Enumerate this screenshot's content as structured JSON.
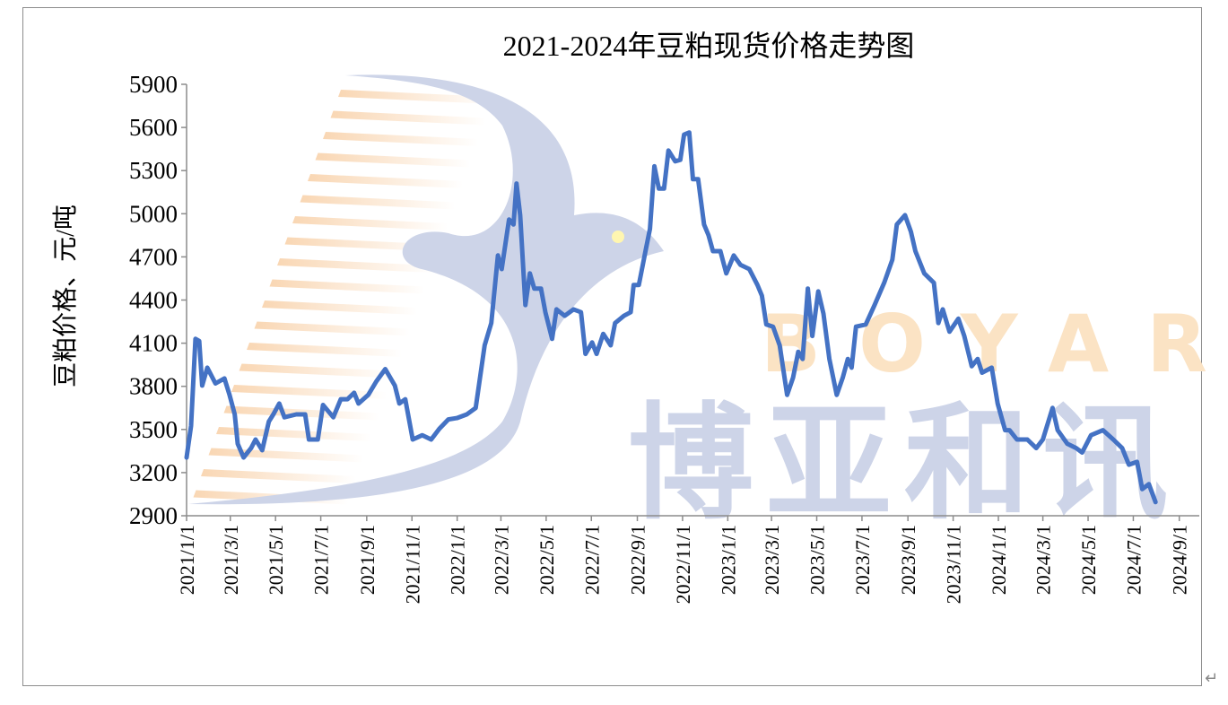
{
  "chart_data": {
    "type": "line",
    "title": "2021-2024年豆粕现货价格走势图",
    "xlabel": "",
    "ylabel": "豆粕价格、元/吨",
    "ylim": [
      2900,
      5900
    ],
    "yticks": [
      2900,
      3200,
      3500,
      3800,
      4100,
      4400,
      4700,
      5000,
      5300,
      5600,
      5900
    ],
    "xlim": [
      "2021-01-01",
      "2024-09-28"
    ],
    "xticks": [
      "2021/1/1",
      "2021/3/1",
      "2021/5/1",
      "2021/7/1",
      "2021/9/1",
      "2021/11/1",
      "2022/1/1",
      "2022/3/1",
      "2022/5/1",
      "2022/7/1",
      "2022/9/1",
      "2022/11/1",
      "2023/1/1",
      "2023/3/1",
      "2023/5/1",
      "2023/7/1",
      "2023/9/1",
      "2023/11/1",
      "2024/1/1",
      "2024/3/1",
      "2024/5/1",
      "2024/7/1",
      "2024/9/1"
    ],
    "grid": false,
    "legend": "none",
    "line_color": "#4472c4",
    "series": [
      {
        "values": [
          [
            "2021-01-01",
            3305
          ],
          [
            "2021-01-07",
            3525
          ],
          [
            "2021-01-13",
            4130
          ],
          [
            "2021-01-18",
            4115
          ],
          [
            "2021-01-22",
            3805
          ],
          [
            "2021-01-29",
            3930
          ],
          [
            "2021-02-09",
            3820
          ],
          [
            "2021-02-21",
            3855
          ],
          [
            "2021-02-28",
            3740
          ],
          [
            "2021-03-07",
            3605
          ],
          [
            "2021-03-11",
            3400
          ],
          [
            "2021-03-19",
            3305
          ],
          [
            "2021-03-29",
            3370
          ],
          [
            "2021-04-04",
            3430
          ],
          [
            "2021-04-13",
            3355
          ],
          [
            "2021-04-22",
            3555
          ],
          [
            "2021-04-28",
            3605
          ],
          [
            "2021-05-06",
            3680
          ],
          [
            "2021-05-13",
            3585
          ],
          [
            "2021-05-29",
            3605
          ],
          [
            "2021-06-10",
            3605
          ],
          [
            "2021-06-15",
            3430
          ],
          [
            "2021-06-27",
            3430
          ],
          [
            "2021-07-04",
            3670
          ],
          [
            "2021-07-18",
            3585
          ],
          [
            "2021-07-28",
            3710
          ],
          [
            "2021-08-06",
            3710
          ],
          [
            "2021-08-15",
            3755
          ],
          [
            "2021-08-21",
            3680
          ],
          [
            "2021-09-03",
            3740
          ],
          [
            "2021-09-14",
            3835
          ],
          [
            "2021-09-26",
            3920
          ],
          [
            "2021-10-09",
            3805
          ],
          [
            "2021-10-15",
            3680
          ],
          [
            "2021-10-23",
            3710
          ],
          [
            "2021-11-02",
            3430
          ],
          [
            "2021-11-15",
            3460
          ],
          [
            "2021-11-27",
            3430
          ],
          [
            "2021-12-08",
            3505
          ],
          [
            "2021-12-20",
            3570
          ],
          [
            "2022-01-01",
            3580
          ],
          [
            "2022-01-14",
            3605
          ],
          [
            "2022-01-26",
            3650
          ],
          [
            "2022-02-07",
            4085
          ],
          [
            "2022-02-16",
            4240
          ],
          [
            "2022-02-25",
            4710
          ],
          [
            "2022-03-02",
            4615
          ],
          [
            "2022-03-12",
            4960
          ],
          [
            "2022-03-18",
            4925
          ],
          [
            "2022-03-22",
            5210
          ],
          [
            "2022-03-27",
            4990
          ],
          [
            "2022-04-03",
            4365
          ],
          [
            "2022-04-09",
            4585
          ],
          [
            "2022-04-15",
            4480
          ],
          [
            "2022-04-24",
            4480
          ],
          [
            "2022-04-30",
            4315
          ],
          [
            "2022-05-09",
            4130
          ],
          [
            "2022-05-15",
            4335
          ],
          [
            "2022-05-26",
            4290
          ],
          [
            "2022-06-07",
            4335
          ],
          [
            "2022-06-17",
            4315
          ],
          [
            "2022-06-23",
            4025
          ],
          [
            "2022-07-02",
            4105
          ],
          [
            "2022-07-08",
            4025
          ],
          [
            "2022-07-17",
            4165
          ],
          [
            "2022-07-27",
            4085
          ],
          [
            "2022-08-02",
            4240
          ],
          [
            "2022-08-14",
            4290
          ],
          [
            "2022-08-23",
            4315
          ],
          [
            "2022-08-27",
            4505
          ],
          [
            "2022-09-03",
            4505
          ],
          [
            "2022-09-12",
            4740
          ],
          [
            "2022-09-18",
            4895
          ],
          [
            "2022-09-24",
            5330
          ],
          [
            "2022-09-30",
            5175
          ],
          [
            "2022-10-07",
            5175
          ],
          [
            "2022-10-13",
            5440
          ],
          [
            "2022-10-22",
            5365
          ],
          [
            "2022-10-29",
            5375
          ],
          [
            "2022-11-03",
            5550
          ],
          [
            "2022-11-10",
            5565
          ],
          [
            "2022-11-15",
            5240
          ],
          [
            "2022-11-22",
            5240
          ],
          [
            "2022-11-30",
            4925
          ],
          [
            "2022-12-06",
            4850
          ],
          [
            "2022-12-12",
            4740
          ],
          [
            "2022-12-22",
            4740
          ],
          [
            "2022-12-30",
            4585
          ],
          [
            "2023-01-09",
            4710
          ],
          [
            "2023-01-18",
            4645
          ],
          [
            "2023-01-30",
            4615
          ],
          [
            "2023-02-10",
            4505
          ],
          [
            "2023-02-16",
            4430
          ],
          [
            "2023-02-22",
            4230
          ],
          [
            "2023-03-03",
            4215
          ],
          [
            "2023-03-12",
            4085
          ],
          [
            "2023-03-22",
            3740
          ],
          [
            "2023-03-30",
            3860
          ],
          [
            "2023-04-06",
            4040
          ],
          [
            "2023-04-12",
            3990
          ],
          [
            "2023-04-19",
            4480
          ],
          [
            "2023-04-25",
            4150
          ],
          [
            "2023-05-03",
            4460
          ],
          [
            "2023-05-10",
            4305
          ],
          [
            "2023-05-18",
            3990
          ],
          [
            "2023-05-28",
            3740
          ],
          [
            "2023-06-05",
            3860
          ],
          [
            "2023-06-12",
            3990
          ],
          [
            "2023-06-17",
            3930
          ],
          [
            "2023-06-23",
            4215
          ],
          [
            "2023-07-06",
            4230
          ],
          [
            "2023-07-18",
            4365
          ],
          [
            "2023-07-31",
            4520
          ],
          [
            "2023-08-11",
            4680
          ],
          [
            "2023-08-17",
            4925
          ],
          [
            "2023-08-28",
            4990
          ],
          [
            "2023-09-05",
            4875
          ],
          [
            "2023-09-11",
            4740
          ],
          [
            "2023-09-23",
            4585
          ],
          [
            "2023-10-06",
            4520
          ],
          [
            "2023-10-12",
            4240
          ],
          [
            "2023-10-18",
            4335
          ],
          [
            "2023-10-27",
            4180
          ],
          [
            "2023-11-08",
            4270
          ],
          [
            "2023-11-16",
            4150
          ],
          [
            "2023-11-26",
            3940
          ],
          [
            "2023-12-04",
            3990
          ],
          [
            "2023-12-10",
            3895
          ],
          [
            "2023-12-23",
            3930
          ],
          [
            "2023-12-31",
            3680
          ],
          [
            "2024-01-10",
            3495
          ],
          [
            "2024-01-16",
            3495
          ],
          [
            "2024-01-26",
            3430
          ],
          [
            "2024-02-09",
            3430
          ],
          [
            "2024-02-21",
            3370
          ],
          [
            "2024-03-01",
            3430
          ],
          [
            "2024-03-14",
            3650
          ],
          [
            "2024-03-21",
            3495
          ],
          [
            "2024-04-03",
            3400
          ],
          [
            "2024-04-15",
            3370
          ],
          [
            "2024-04-23",
            3340
          ],
          [
            "2024-05-05",
            3460
          ],
          [
            "2024-05-21",
            3495
          ],
          [
            "2024-06-04",
            3430
          ],
          [
            "2024-06-16",
            3370
          ],
          [
            "2024-06-25",
            3255
          ],
          [
            "2024-07-06",
            3275
          ],
          [
            "2024-07-13",
            3085
          ],
          [
            "2024-07-22",
            3120
          ],
          [
            "2024-07-31",
            2995
          ]
        ]
      }
    ]
  },
  "watermark": {
    "latin": "BOYAR",
    "chinese": "博亚和讯"
  },
  "footer": {
    "return_mark": "↵"
  }
}
